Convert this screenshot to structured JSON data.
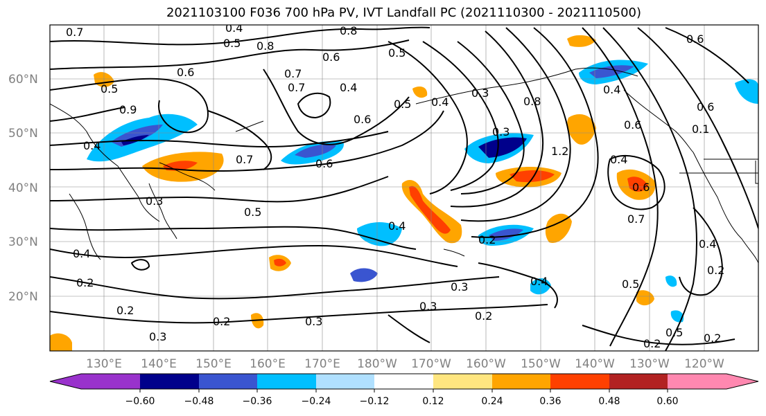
{
  "title": "2021103100 F036 700 hPa PV, IVT Landfall PC (2021110300 - 2021110500)",
  "lat_labels": [
    "60°N",
    "50°N",
    "40°N",
    "30°N",
    "20°N"
  ],
  "lon_labels": [
    "130°E",
    "140°E",
    "150°E",
    "160°E",
    "170°E",
    "180°W",
    "170°W",
    "160°W",
    "150°W",
    "140°W",
    "130°W",
    "120°W"
  ],
  "colorbar": {
    "tick_labels": [
      "−0.60",
      "−0.48",
      "−0.36",
      "−0.24",
      "−0.12",
      "0.12",
      "0.24",
      "0.36",
      "0.48",
      "0.60"
    ],
    "colors": [
      "#9932cc",
      "#00008b",
      "#3a55d0",
      "#00bfff",
      "#b0e0ff",
      "#ffffff",
      "#ffe680",
      "#ffa500",
      "#ff4000",
      "#b22222",
      "#ff88b0"
    ]
  },
  "contour_labels": [
    "0.7",
    "0.4",
    "0.8",
    "0.5",
    "0.8",
    "0.5",
    "0.7",
    "0.6",
    "0.5",
    "0.6",
    "0.7",
    "0.4",
    "0.6",
    "0.5",
    "0.4",
    "0.3",
    "0.8",
    "0.9",
    "0.4",
    "0.7",
    "0.6",
    "0.3",
    "1.2",
    "0.6",
    "0.7",
    "0.3",
    "0.2",
    "0.5",
    "0.4",
    "0.4",
    "0.2",
    "0.3",
    "0.3",
    "0.2",
    "0.2",
    "0.3",
    "0.4",
    "0.5",
    "0.2",
    "0.2",
    "0.5",
    "0.6",
    "0.1",
    "0.6",
    "0.2",
    "0.4",
    "0.2",
    "0.4",
    "0.3",
    "0.6",
    "0.4"
  ]
}
